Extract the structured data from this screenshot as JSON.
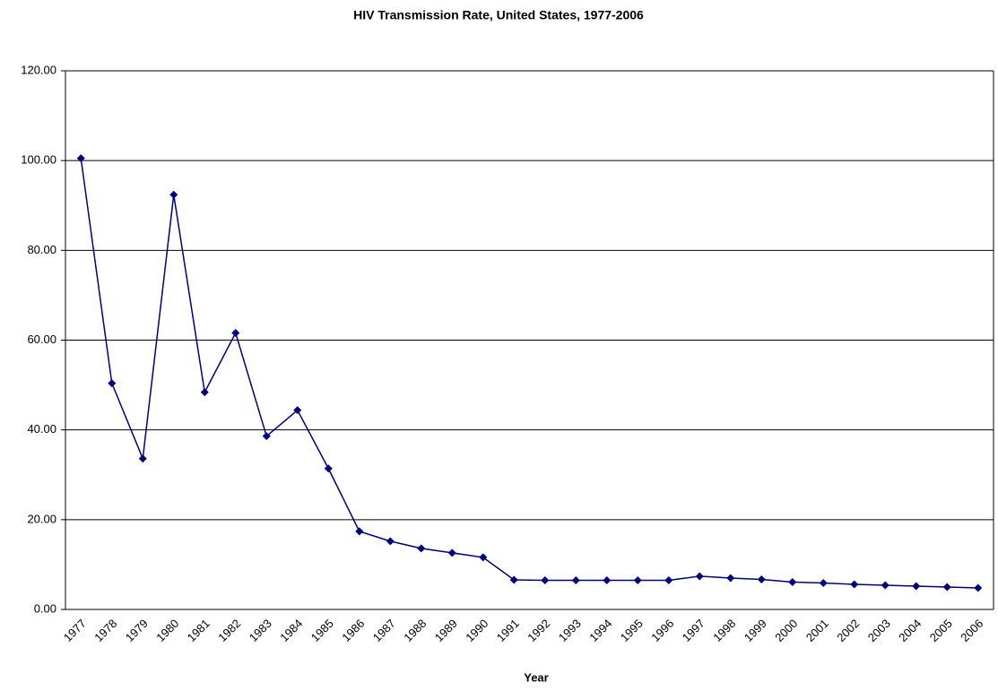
{
  "chart_data": {
    "type": "line",
    "title": "HIV Transmission Rate, United States, 1977-2006",
    "x_label": "Year",
    "categories": [
      "1977",
      "1978",
      "1979",
      "1980",
      "1981",
      "1982",
      "1983",
      "1984",
      "1985",
      "1986",
      "1987",
      "1988",
      "1989",
      "1990",
      "1991",
      "1992",
      "1993",
      "1994",
      "1995",
      "1996",
      "1997",
      "1998",
      "1999",
      "2000",
      "2001",
      "2002",
      "2003",
      "2004",
      "2005",
      "2006"
    ],
    "series": [
      {
        "color": "#000080",
        "values": [
          100.5,
          50.4,
          33.6,
          92.4,
          48.4,
          61.6,
          38.6,
          44.4,
          31.4,
          17.4,
          15.2,
          13.6,
          12.6,
          11.6,
          6.6,
          6.5,
          6.5,
          6.5,
          6.5,
          6.5,
          7.4,
          7.0,
          6.7,
          6.1,
          5.9,
          5.6,
          5.4,
          5.2,
          5.0,
          4.8
        ]
      }
    ],
    "ylim": [
      0,
      120
    ],
    "yticks": [
      {
        "value": 0,
        "label": "0.00"
      },
      {
        "value": 20,
        "label": "20.00"
      },
      {
        "value": 40,
        "label": "40.00"
      },
      {
        "value": 60,
        "label": "60.00"
      },
      {
        "value": 80,
        "label": "80.00"
      },
      {
        "value": 100,
        "label": "100.00"
      },
      {
        "value": 120,
        "label": "120.00"
      }
    ],
    "grid": true
  }
}
